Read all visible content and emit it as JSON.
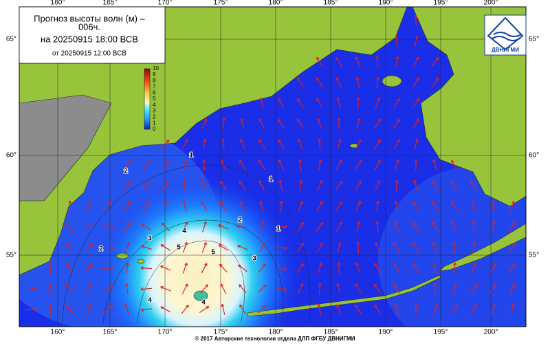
{
  "header": {
    "title": "Прогноз высоты волн (м) –",
    "lead": "006ч.",
    "valid": "на 20250915 18:00 ВСВ",
    "issued": "от 20250915 12:00 ВСВ"
  },
  "colorbar": {
    "ticks": [
      0,
      1,
      2,
      3,
      4,
      5,
      6,
      7,
      8,
      9,
      10
    ]
  },
  "longitudes": [
    "160°",
    "165°",
    "170°",
    "175°",
    "180°",
    "185°",
    "190°",
    "195°",
    "200°"
  ],
  "latitudes": [
    "65°",
    "60°",
    "55°"
  ],
  "contour_labels": [
    1,
    1,
    1,
    2,
    2,
    2,
    3,
    3,
    4,
    4,
    4,
    5,
    5
  ],
  "logo": "ДВНИГМИ",
  "footer": "© 2017 Авторские технологии отдела ДЛП ФГБУ ДВНИГМИ"
}
